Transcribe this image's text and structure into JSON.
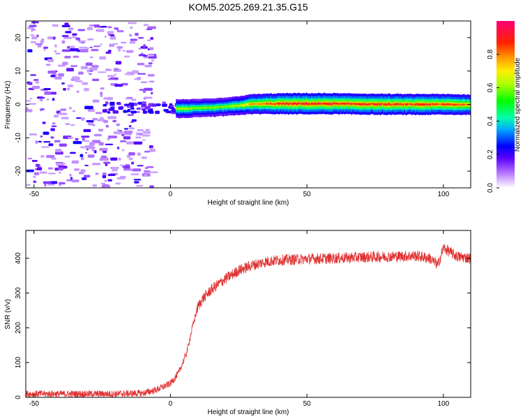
{
  "title": "KOM5.2025.269.21.35.G15",
  "chart_data": [
    {
      "type": "heatmap",
      "title": "KOM5.2025.269.21.35.G15",
      "xlabel": "Height of straight line (km)",
      "ylabel": "Frequency (Hz)",
      "xlim": [
        -53,
        110
      ],
      "ylim": [
        -25,
        25
      ],
      "xticks": [
        -50,
        0,
        50,
        100
      ],
      "yticks": [
        -20,
        -10,
        0,
        10,
        20
      ],
      "xtick_labels": [
        "-50",
        "0",
        "50",
        "100"
      ],
      "ytick_labels": [
        "-20",
        "-10",
        "0",
        "10",
        "20"
      ],
      "colorbar": {
        "label": "Normalized spectral amplitude",
        "range": [
          0,
          1
        ],
        "ticks": [
          "0.0",
          "0.2",
          "0.4",
          "0.6",
          "0.8"
        ],
        "tick_values": [
          0,
          0.2,
          0.4,
          0.6,
          0.8
        ],
        "colors": [
          "#ffffff",
          "#cc99ff",
          "#7700ff",
          "#0000ff",
          "#00ccff",
          "#00ff88",
          "#22ff00",
          "#ccff00",
          "#ffdd00",
          "#ff6600",
          "#ff0000",
          "#ff0066"
        ]
      },
      "signal_trace": [
        {
          "x": 2,
          "f": -1.3,
          "a": 0.72
        },
        {
          "x": 8,
          "f": -1.2,
          "a": 0.68
        },
        {
          "x": 15,
          "f": -1.0,
          "a": 0.66
        },
        {
          "x": 22,
          "f": -0.6,
          "a": 0.7
        },
        {
          "x": 30,
          "f": 0.1,
          "a": 0.85
        },
        {
          "x": 40,
          "f": 0.2,
          "a": 0.97
        },
        {
          "x": 50,
          "f": 0.2,
          "a": 1.0
        },
        {
          "x": 60,
          "f": 0.2,
          "a": 0.98
        },
        {
          "x": 70,
          "f": 0.1,
          "a": 0.99
        },
        {
          "x": 80,
          "f": 0.0,
          "a": 0.97
        },
        {
          "x": 90,
          "f": 0.0,
          "a": 0.96
        },
        {
          "x": 100,
          "f": 0.0,
          "a": 0.95
        },
        {
          "x": 110,
          "f": -0.1,
          "a": 0.9
        }
      ],
      "noise_region": {
        "x": [
          -53,
          -7
        ],
        "f": [
          -25,
          25
        ],
        "a": [
          0.02,
          0.2
        ]
      }
    },
    {
      "type": "line",
      "xlabel": "Height of straight line (km)",
      "ylabel": "SNR (v/v)",
      "xlim": [
        -53,
        110
      ],
      "ylim": [
        0,
        480
      ],
      "xticks": [
        -50,
        0,
        50,
        100
      ],
      "yticks": [
        0,
        100,
        200,
        300,
        400
      ],
      "xtick_labels": [
        "-50",
        "0",
        "50",
        "100"
      ],
      "ytick_labels": [
        "0",
        "100",
        "200",
        "300",
        "400"
      ],
      "series": [
        {
          "name": "SNR",
          "color": "#e03030",
          "x": [
            -53,
            -40,
            -30,
            -20,
            -10,
            -5,
            0,
            3,
            6,
            8,
            10,
            12,
            15,
            20,
            25,
            30,
            35,
            40,
            50,
            60,
            70,
            80,
            90,
            95,
            98,
            100,
            105,
            110
          ],
          "y": [
            10,
            10,
            10,
            10,
            12,
            22,
            40,
            70,
            130,
            200,
            260,
            285,
            310,
            340,
            365,
            380,
            390,
            395,
            398,
            400,
            403,
            405,
            407,
            400,
            380,
            430,
            405,
            400
          ],
          "noise_amplitude": 10
        }
      ]
    }
  ]
}
